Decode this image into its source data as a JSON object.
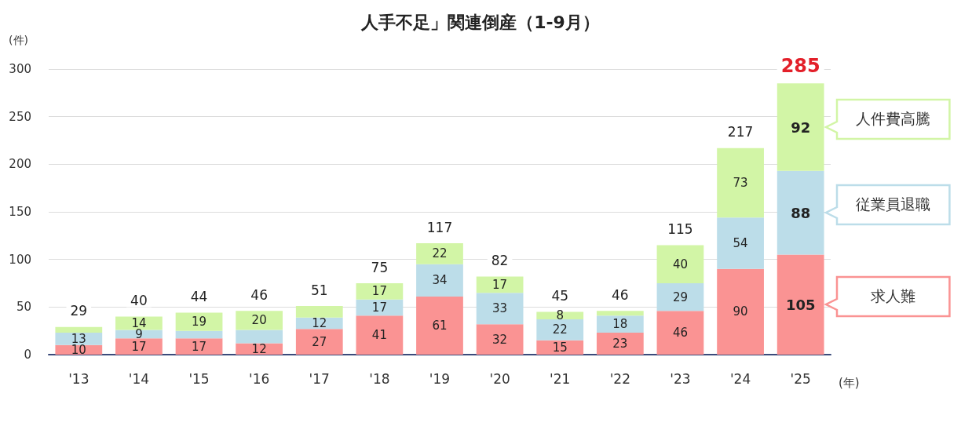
{
  "chart_data": {
    "type": "bar",
    "title": "人手不足」関連倒産（1-9月）",
    "xlabel": "(年)",
    "ylabel": "(件)",
    "categories": [
      "'13",
      "'14",
      "'15",
      "'16",
      "'17",
      "'18",
      "'19",
      "'20",
      "'21",
      "'22",
      "'23",
      "'24",
      "'25"
    ],
    "stacked": true,
    "series": [
      {
        "name": "求人難",
        "color": "#fa9393",
        "values": [
          10,
          17,
          17,
          12,
          27,
          41,
          61,
          32,
          15,
          23,
          46,
          90,
          105
        ],
        "value_labels": [
          "10",
          "17",
          "17",
          "12",
          "27",
          "41",
          "61",
          "32",
          "15",
          "23",
          "46",
          "90",
          "105"
        ]
      },
      {
        "name": "従業員退職",
        "color": "#bcdde9",
        "values": [
          13,
          9,
          8,
          14,
          12,
          17,
          34,
          33,
          22,
          18,
          29,
          54,
          88
        ],
        "value_labels": [
          "13",
          "9",
          null,
          null,
          "12",
          "17",
          "34",
          "33",
          "22",
          "18",
          "29",
          "54",
          "88"
        ]
      },
      {
        "name": "人件費高騰",
        "color": "#d2f5a6",
        "values": [
          6,
          14,
          19,
          20,
          12,
          17,
          22,
          17,
          8,
          5,
          40,
          73,
          92
        ],
        "value_labels": [
          null,
          "14",
          "19",
          "20",
          null,
          "17",
          "22",
          "17",
          "8",
          null,
          "40",
          "73",
          "92"
        ]
      }
    ],
    "totals": [
      "29",
      "40",
      "44",
      "46",
      "51",
      "75",
      "117",
      "82",
      "45",
      "46",
      "115",
      "217",
      "285"
    ],
    "ylim": [
      0,
      300
    ],
    "yticks": [
      0,
      50,
      100,
      150,
      200,
      250,
      300
    ],
    "grid": "y",
    "legend": "right"
  }
}
